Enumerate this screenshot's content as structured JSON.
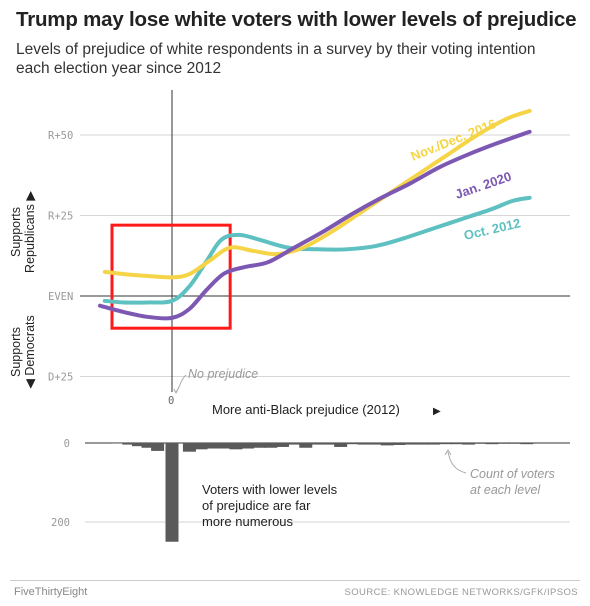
{
  "title": "Trump may lose white voters with lower levels of prejudice",
  "subtitle": "Levels of prejudice of white respondents in a survey by their voting intention each election year since 2012",
  "footer": {
    "brand": "FiveThirtyEight",
    "source": "SOURCE: KNOWLEDGE NETWORKS/GFK/IPSOS"
  },
  "colors": {
    "nov_dec_2016": "#f5d547",
    "jan_2020": "#7d58b3",
    "oct_2012": "#5ec0c0",
    "highlight_box": "#ff1a1a",
    "bars": "#5a5a5a"
  },
  "chart_data": [
    {
      "type": "line",
      "y_tick_labels": [
        "R+50",
        "R+25",
        "EVEN",
        "D+25"
      ],
      "y_ticks": [
        50,
        25,
        0,
        -25
      ],
      "ylim": [
        -27,
        60
      ],
      "xlim": [
        -0.35,
        1.3
      ],
      "x_tick_label": "0",
      "y_axis_label_top": [
        "Supports",
        "Republicans ▶"
      ],
      "y_axis_label_bottom": [
        "Supports",
        "◀ Democrats"
      ],
      "xlabel": "More anti-Black prejudice (2012)",
      "xlabel_arrow": "▶",
      "annotation_no_prejudice": "No prejudice",
      "highlight_box": {
        "x_range": [
          -0.25,
          0.2
        ],
        "y_range": [
          -10,
          22
        ]
      },
      "series": [
        {
          "name": "Nov./Dec. 2016",
          "color_key": "nov_dec_2016",
          "points": [
            [
              -0.28,
              7.5
            ],
            [
              -0.2,
              6.8
            ],
            [
              -0.1,
              6.2
            ],
            [
              0.0,
              5.8
            ],
            [
              0.06,
              6.8
            ],
            [
              0.13,
              11
            ],
            [
              0.2,
              15
            ],
            [
              0.28,
              14
            ],
            [
              0.36,
              13
            ],
            [
              0.45,
              15
            ],
            [
              0.55,
              20
            ],
            [
              0.65,
              26
            ],
            [
              0.75,
              32
            ],
            [
              0.85,
              38
            ],
            [
              0.95,
              44
            ],
            [
              1.05,
              50
            ],
            [
              1.15,
              55
            ],
            [
              1.23,
              57.5
            ]
          ]
        },
        {
          "name": "Jan. 2020",
          "color_key": "jan_2020",
          "points": [
            [
              -0.3,
              -3
            ],
            [
              -0.2,
              -5
            ],
            [
              -0.1,
              -6.5
            ],
            [
              0.0,
              -6.8
            ],
            [
              0.06,
              -4
            ],
            [
              0.12,
              2
            ],
            [
              0.18,
              7
            ],
            [
              0.25,
              9
            ],
            [
              0.33,
              10.5
            ],
            [
              0.42,
              15
            ],
            [
              0.52,
              20
            ],
            [
              0.62,
              25.5
            ],
            [
              0.72,
              30.5
            ],
            [
              0.82,
              35
            ],
            [
              0.92,
              40
            ],
            [
              1.02,
              44
            ],
            [
              1.12,
              47.5
            ],
            [
              1.23,
              51
            ]
          ]
        },
        {
          "name": "Oct. 2012",
          "color_key": "oct_2012",
          "points": [
            [
              -0.28,
              -1.5
            ],
            [
              -0.2,
              -2
            ],
            [
              -0.1,
              -2
            ],
            [
              0.0,
              -1.5
            ],
            [
              0.06,
              3
            ],
            [
              0.12,
              11
            ],
            [
              0.17,
              17.5
            ],
            [
              0.23,
              19
            ],
            [
              0.3,
              17.5
            ],
            [
              0.4,
              15
            ],
            [
              0.5,
              14.5
            ],
            [
              0.6,
              14.5
            ],
            [
              0.7,
              15.5
            ],
            [
              0.8,
              18
            ],
            [
              0.9,
              21
            ],
            [
              1.0,
              24
            ],
            [
              1.1,
              27
            ],
            [
              1.17,
              29.5
            ],
            [
              1.23,
              30.5
            ]
          ]
        }
      ]
    },
    {
      "type": "bar",
      "y_tick_labels": [
        "0",
        "200"
      ],
      "y_ticks": [
        0,
        200
      ],
      "ylim": [
        0,
        260
      ],
      "annotation_lower": "Voters with lower levels of prejudice are far more numerous",
      "annotation_count": "Count of voters at each level",
      "bars": [
        {
          "x": -0.22,
          "value": 1
        },
        {
          "x": -0.18,
          "value": 4
        },
        {
          "x": -0.14,
          "value": 8
        },
        {
          "x": -0.1,
          "value": 12
        },
        {
          "x": -0.06,
          "value": 20
        },
        {
          "x": 0.0,
          "value": 250
        },
        {
          "x": 0.06,
          "value": 22
        },
        {
          "x": 0.1,
          "value": 16
        },
        {
          "x": 0.14,
          "value": 14
        },
        {
          "x": 0.18,
          "value": 14
        },
        {
          "x": 0.22,
          "value": 16
        },
        {
          "x": 0.26,
          "value": 14
        },
        {
          "x": 0.3,
          "value": 12
        },
        {
          "x": 0.34,
          "value": 12
        },
        {
          "x": 0.38,
          "value": 10
        },
        {
          "x": 0.42,
          "value": 4
        },
        {
          "x": 0.46,
          "value": 12
        },
        {
          "x": 0.5,
          "value": 4
        },
        {
          "x": 0.54,
          "value": 4
        },
        {
          "x": 0.58,
          "value": 10
        },
        {
          "x": 0.62,
          "value": 3
        },
        {
          "x": 0.66,
          "value": 4
        },
        {
          "x": 0.7,
          "value": 4
        },
        {
          "x": 0.74,
          "value": 6
        },
        {
          "x": 0.78,
          "value": 5
        },
        {
          "x": 0.82,
          "value": 4
        },
        {
          "x": 0.86,
          "value": 4
        },
        {
          "x": 0.9,
          "value": 4
        },
        {
          "x": 0.94,
          "value": 3
        },
        {
          "x": 0.98,
          "value": 3
        },
        {
          "x": 1.02,
          "value": 4
        },
        {
          "x": 1.06,
          "value": 2
        },
        {
          "x": 1.1,
          "value": 3
        },
        {
          "x": 1.14,
          "value": 2
        },
        {
          "x": 1.18,
          "value": 2
        },
        {
          "x": 1.22,
          "value": 3
        }
      ]
    }
  ]
}
